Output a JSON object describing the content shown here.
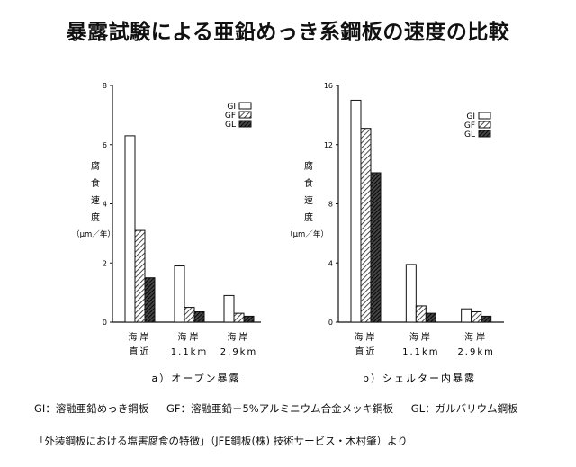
{
  "title": "暴露試験による亜鉛めっき系鋼板の速度の比較",
  "chart_data": [
    {
      "type": "bar",
      "panel_label": "a）オープン暴露",
      "ylabel": [
        "腐",
        "食",
        "速",
        "度",
        "（μm／年）"
      ],
      "yticks": [
        "0",
        "2",
        "4",
        "6",
        "8"
      ],
      "ylim": [
        0,
        8
      ],
      "categories": [
        [
          "海岸",
          "直近"
        ],
        [
          "海岸",
          "1.1km"
        ],
        [
          "海岸",
          "2.9km"
        ]
      ],
      "legend": [
        "GI",
        "GF",
        "GL"
      ],
      "series": [
        {
          "name": "GI",
          "values": [
            6.3,
            1.9,
            0.9
          ]
        },
        {
          "name": "GF",
          "values": [
            3.1,
            0.5,
            0.3
          ]
        },
        {
          "name": "GL",
          "values": [
            1.5,
            0.35,
            0.2
          ]
        }
      ]
    },
    {
      "type": "bar",
      "panel_label": "b）シェルター内暴露",
      "ylabel": [
        "腐",
        "食",
        "速",
        "度",
        "（μm／年）"
      ],
      "yticks": [
        "0",
        "4",
        "8",
        "12",
        "16"
      ],
      "ylim": [
        0,
        16
      ],
      "categories": [
        [
          "海岸",
          "直近"
        ],
        [
          "海岸",
          "1.1km"
        ],
        [
          "海岸",
          "2.9km"
        ]
      ],
      "legend": [
        "GI",
        "GF",
        "GL"
      ],
      "series": [
        {
          "name": "GI",
          "values": [
            15.0,
            3.9,
            0.9
          ]
        },
        {
          "name": "GF",
          "values": [
            13.1,
            1.1,
            0.7
          ]
        },
        {
          "name": "GL",
          "values": [
            10.1,
            0.6,
            0.4
          ]
        }
      ]
    }
  ],
  "notes": {
    "gi": "GI：溶融亜鉛めっき鋼板",
    "gf": "GF：溶融亜鉛－5%アルミニウム合金メッキ鋼板",
    "gl": "GL：ガルバリウム鋼板"
  },
  "source": "「外装鋼板における塩害腐食の特徴」（JFE鋼板(株) 技術サービス・木村肇）より"
}
